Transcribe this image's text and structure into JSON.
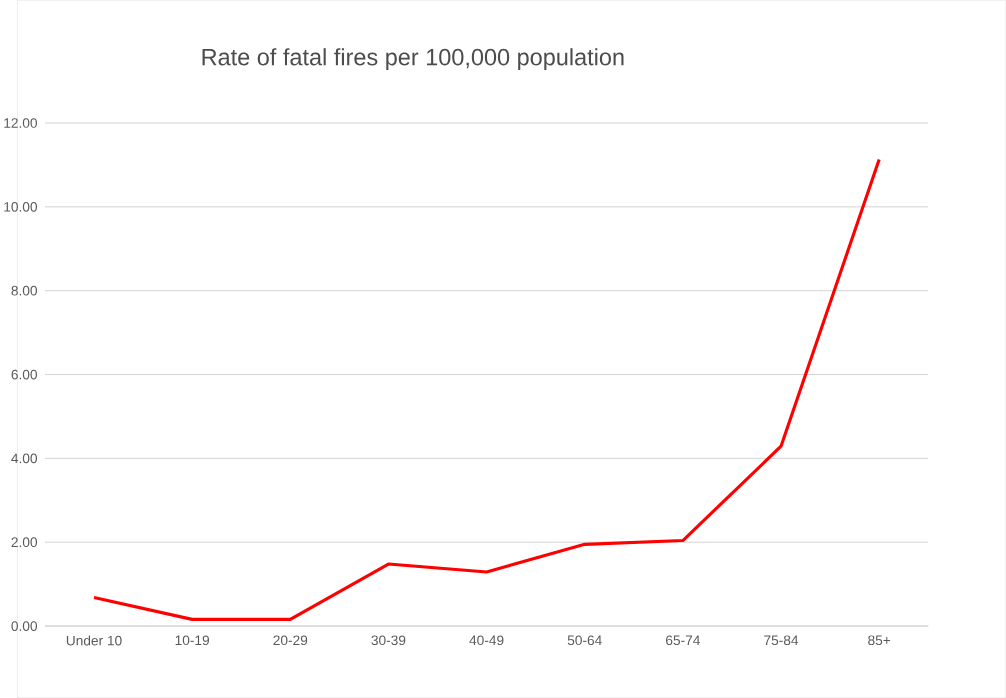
{
  "chart_data": {
    "type": "line",
    "title": "Rate of fatal fires per 100,000 population",
    "categories": [
      "Under 10",
      "10-19",
      "20-29",
      "30-39",
      "40-49",
      "50-64",
      "65-74",
      "75-84",
      "85+"
    ],
    "series": [
      {
        "color": "#ff0000",
        "values": [
          0.68,
          0.16,
          0.16,
          1.48,
          1.29,
          1.95,
          2.04,
          4.29,
          11.13
        ]
      }
    ],
    "ylim": [
      0,
      12
    ],
    "yticks": [
      {
        "value": 0,
        "label": "0.00"
      },
      {
        "value": 2,
        "label": "2.00"
      },
      {
        "value": 4,
        "label": "4.00"
      },
      {
        "value": 6,
        "label": "6.00"
      },
      {
        "value": 8,
        "label": "8.00"
      },
      {
        "value": 10,
        "label": "10.00"
      },
      {
        "value": 12,
        "label": "12.00"
      }
    ],
    "grid": "y",
    "marker": "none",
    "line_style": "solid"
  }
}
